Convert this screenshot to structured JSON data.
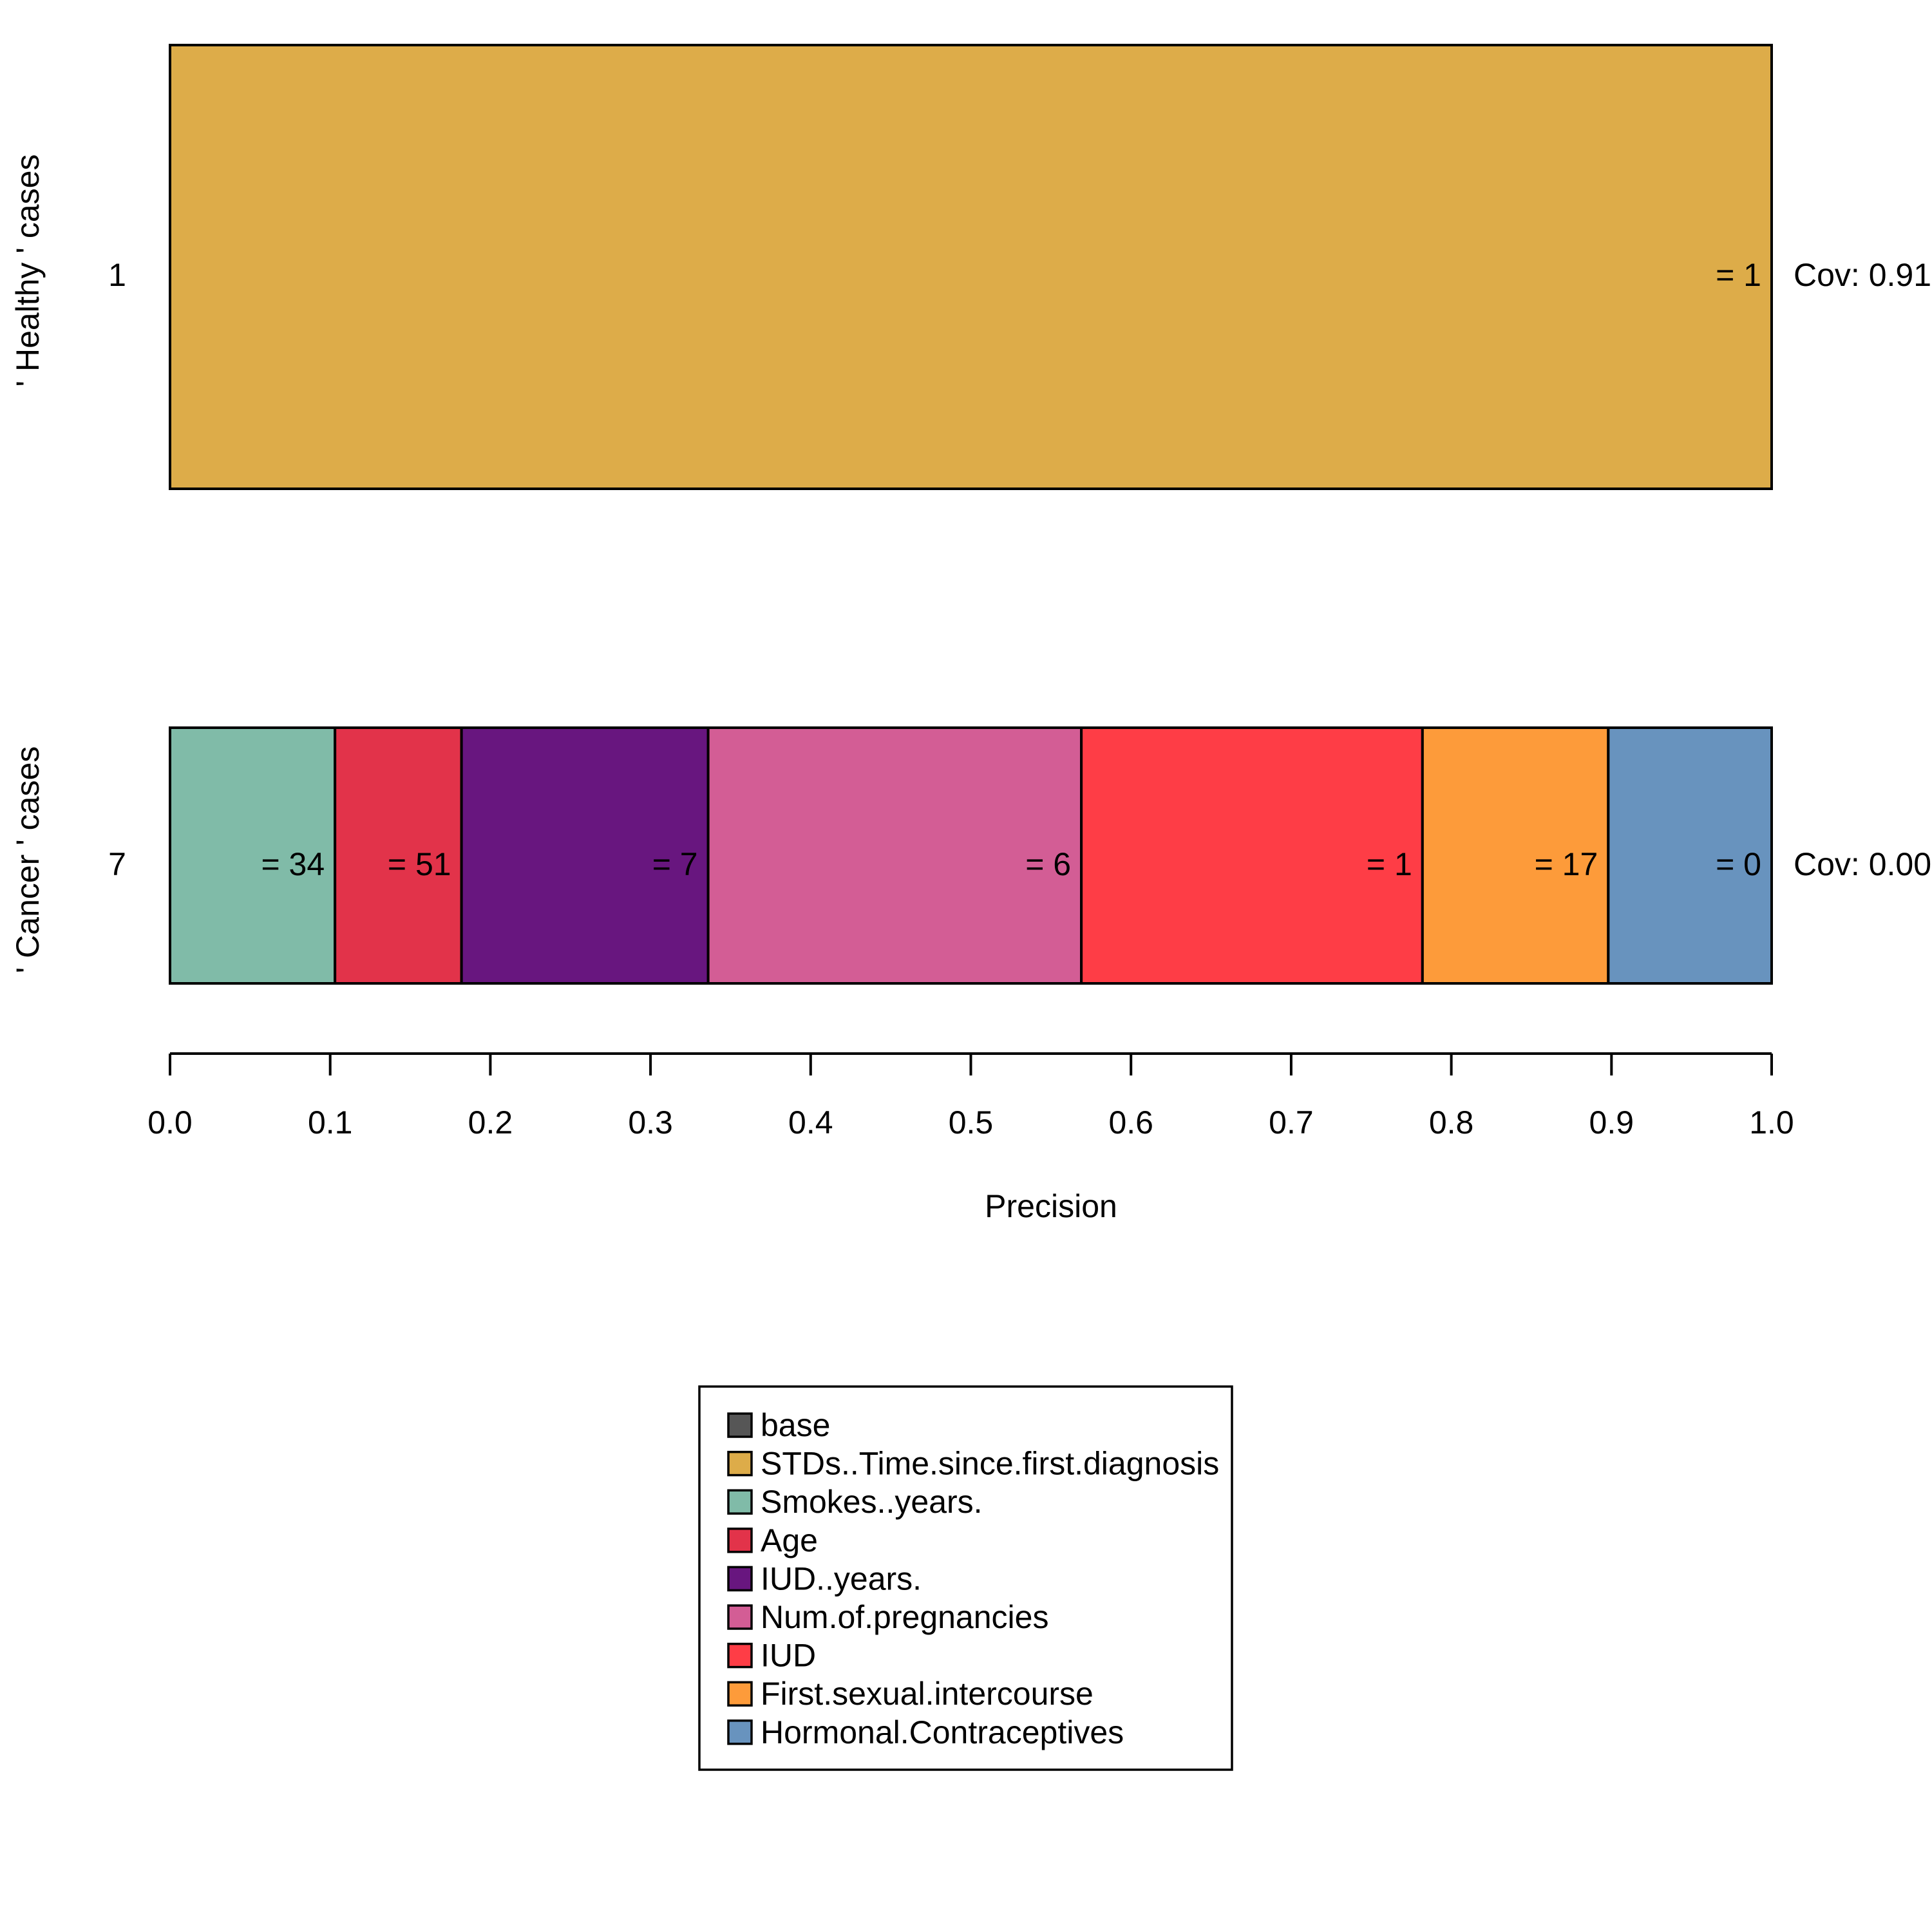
{
  "chart_data": {
    "type": "bar",
    "orientation": "horizontal",
    "stacked": true,
    "xlabel": "Precision",
    "xlim": [
      0.0,
      1.0
    ],
    "x_ticks": [
      "0.0",
      "0.1",
      "0.2",
      "0.3",
      "0.4",
      "0.5",
      "0.6",
      "0.7",
      "0.8",
      "0.9",
      "1.0"
    ],
    "legend_position": "bottom-center",
    "grid": false,
    "rows": [
      {
        "group_label": "' Healthy ' cases",
        "count_label": "1",
        "coverage_label": "Cov: 0.91",
        "segments": [
          {
            "feature": "STDs..Time.since.first.diagnosis",
            "start": 0.0,
            "end": 1.0,
            "label": "= 1",
            "color": "#DDAC49"
          }
        ]
      },
      {
        "group_label": "' Cancer ' cases",
        "count_label": "7",
        "coverage_label": "Cov: 0.00",
        "segments": [
          {
            "feature": "Smokes..years.",
            "start": 0.0,
            "end": 0.103,
            "label": "= 34",
            "color": "#80BBA8"
          },
          {
            "feature": "Age",
            "start": 0.103,
            "end": 0.182,
            "label": "= 51",
            "color": "#E2334A"
          },
          {
            "feature": "IUD..years.",
            "start": 0.182,
            "end": 0.336,
            "label": "= 7",
            "color": "#68167F"
          },
          {
            "feature": "Num.of.pregnancies",
            "start": 0.336,
            "end": 0.569,
            "label": "= 6",
            "color": "#D35D95"
          },
          {
            "feature": "IUD",
            "start": 0.569,
            "end": 0.782,
            "label": "= 1",
            "color": "#FE3D46"
          },
          {
            "feature": "First.sexual.intercourse",
            "start": 0.782,
            "end": 0.898,
            "label": "= 17",
            "color": "#FD9B3A"
          },
          {
            "feature": "Hormonal.Contraceptives",
            "start": 0.898,
            "end": 1.0,
            "label": "= 0",
            "color": "#6893BE"
          }
        ]
      }
    ],
    "legend": [
      {
        "label": "base",
        "color": "#565656"
      },
      {
        "label": "STDs..Time.since.first.diagnosis",
        "color": "#DDAC49"
      },
      {
        "label": "Smokes..years.",
        "color": "#80BBA8"
      },
      {
        "label": "Age",
        "color": "#E2334A"
      },
      {
        "label": "IUD..years.",
        "color": "#68167F"
      },
      {
        "label": "Num.of.pregnancies",
        "color": "#D35D95"
      },
      {
        "label": "IUD",
        "color": "#FE3D46"
      },
      {
        "label": "First.sexual.intercourse",
        "color": "#FD9B3A"
      },
      {
        "label": "Hormonal.Contraceptives",
        "color": "#6893BE"
      }
    ]
  }
}
